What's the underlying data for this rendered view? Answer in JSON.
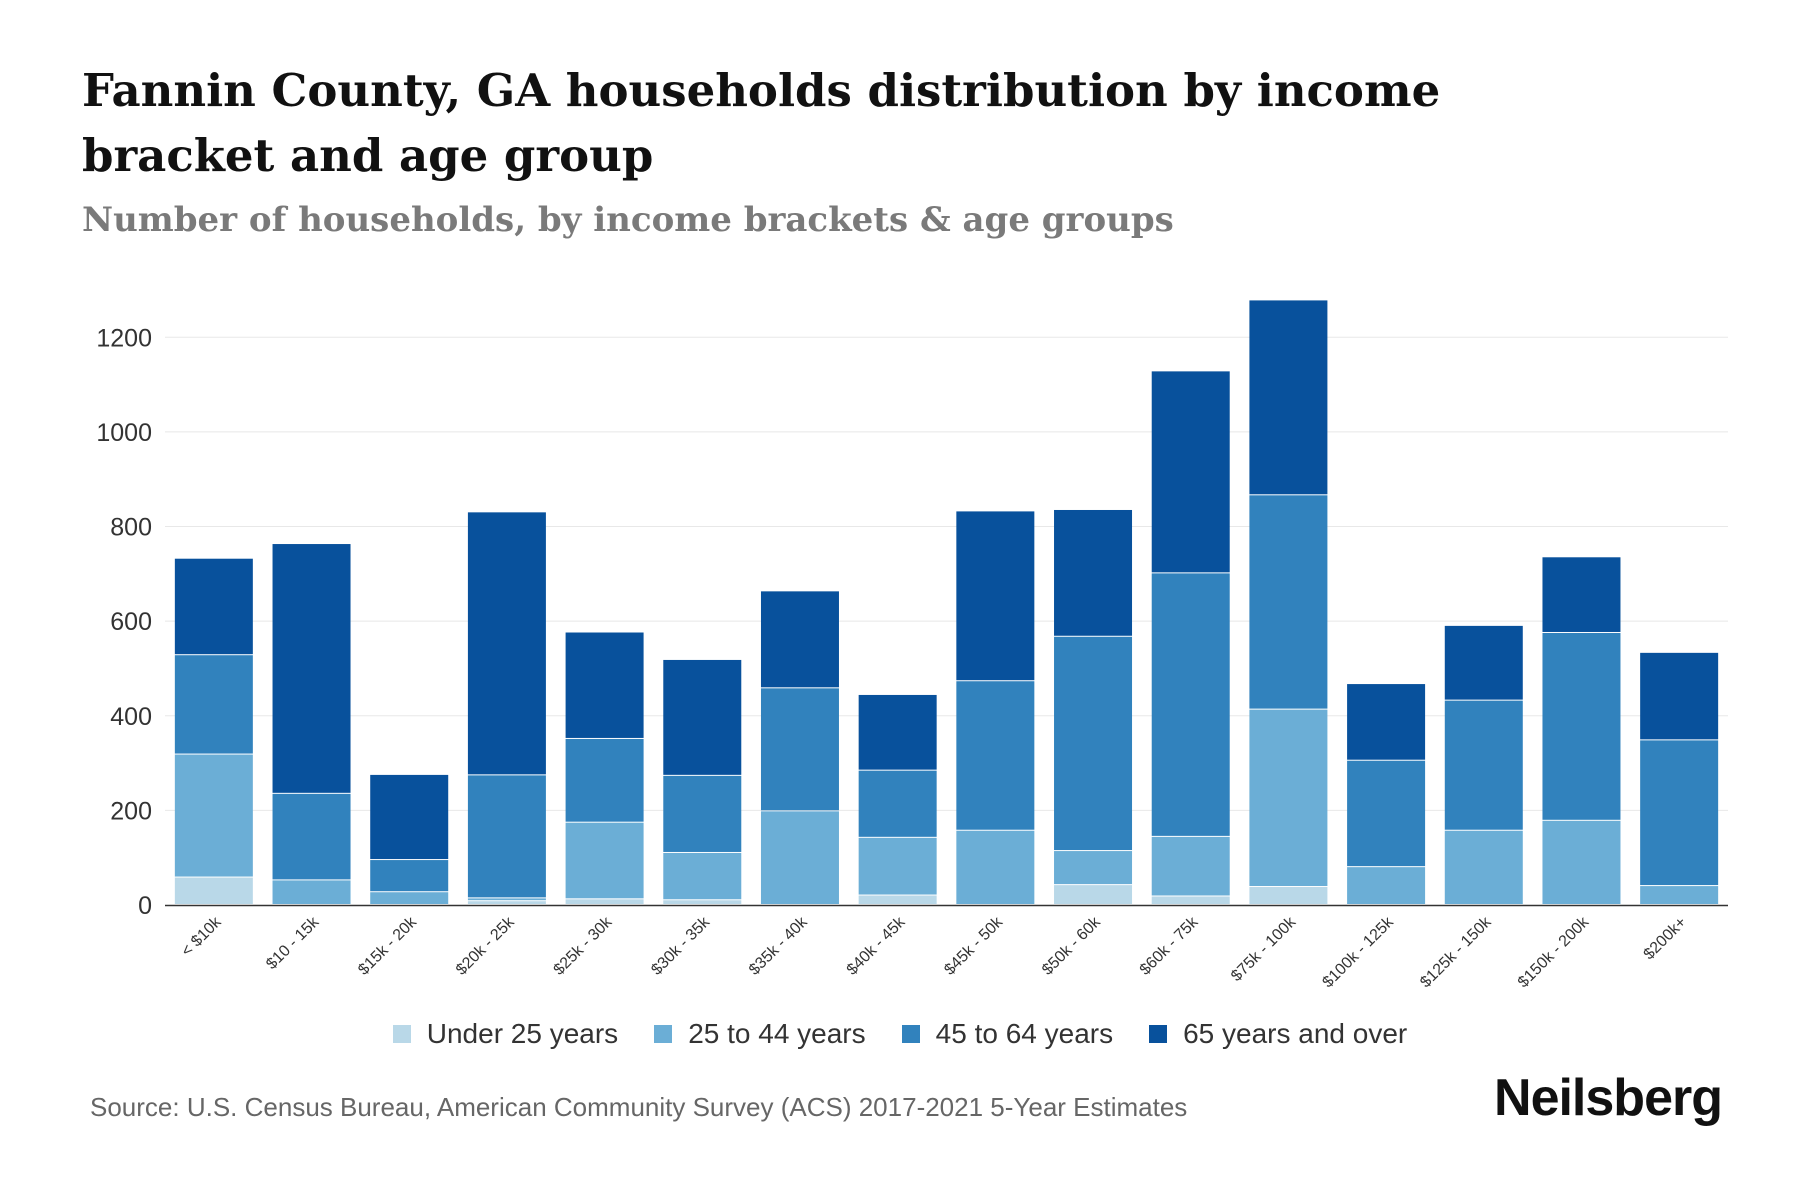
{
  "title": "Fannin County, GA households distribution by income bracket and age group",
  "subtitle": "Number of households, by income brackets & age groups",
  "source": "Source: U.S. Census Bureau, American Community Survey (ACS) 2017-2021 5-Year Estimates",
  "brand": "Neilsberg",
  "colors": {
    "under_25": "#b9d8e8",
    "age_25_44": "#6baed6",
    "age_45_64": "#3182bd",
    "age_65_plus": "#08519c",
    "grid": "#e8e8e8",
    "axis": "#333333"
  },
  "chart_data": {
    "type": "bar",
    "stacked": true,
    "title": "Fannin County, GA households distribution by income bracket and age group",
    "subtitle": "Number of households, by income brackets & age groups",
    "xlabel": "",
    "ylabel": "",
    "ylim": [
      0,
      1300
    ],
    "yticks": [
      0,
      200,
      400,
      600,
      800,
      1000,
      1200
    ],
    "grid": true,
    "legend_position": "bottom",
    "categories": [
      "< $10k",
      "$10 - 15k",
      "$15k - 20k",
      "$20k - 25k",
      "$25k - 30k",
      "$30k - 35k",
      "$35k - 40k",
      "$40k - 45k",
      "$45k - 50k",
      "$50k - 60k",
      "$60k - 75k",
      "$75k - 100k",
      "$100k - 125k",
      "$125k - 150k",
      "$150k - 200k",
      "$200k+"
    ],
    "series": [
      {
        "name": "Under 25 years",
        "color": "#b9d8e8",
        "values": [
          58,
          0,
          0,
          8,
          12,
          10,
          0,
          20,
          0,
          42,
          18,
          38,
          0,
          0,
          0,
          0
        ]
      },
      {
        "name": "25 to 44 years",
        "color": "#6baed6",
        "values": [
          260,
          52,
          27,
          6,
          162,
          100,
          198,
          122,
          157,
          72,
          126,
          375,
          80,
          157,
          178,
          40
        ]
      },
      {
        "name": "45 to 64 years",
        "color": "#3182bd",
        "values": [
          210,
          183,
          68,
          260,
          177,
          163,
          260,
          142,
          316,
          453,
          557,
          453,
          225,
          275,
          397,
          308
        ]
      },
      {
        "name": "65 years and over",
        "color": "#08519c",
        "values": [
          204,
          528,
          180,
          556,
          225,
          245,
          205,
          160,
          359,
          268,
          427,
          412,
          162,
          158,
          160,
          185
        ]
      }
    ]
  }
}
